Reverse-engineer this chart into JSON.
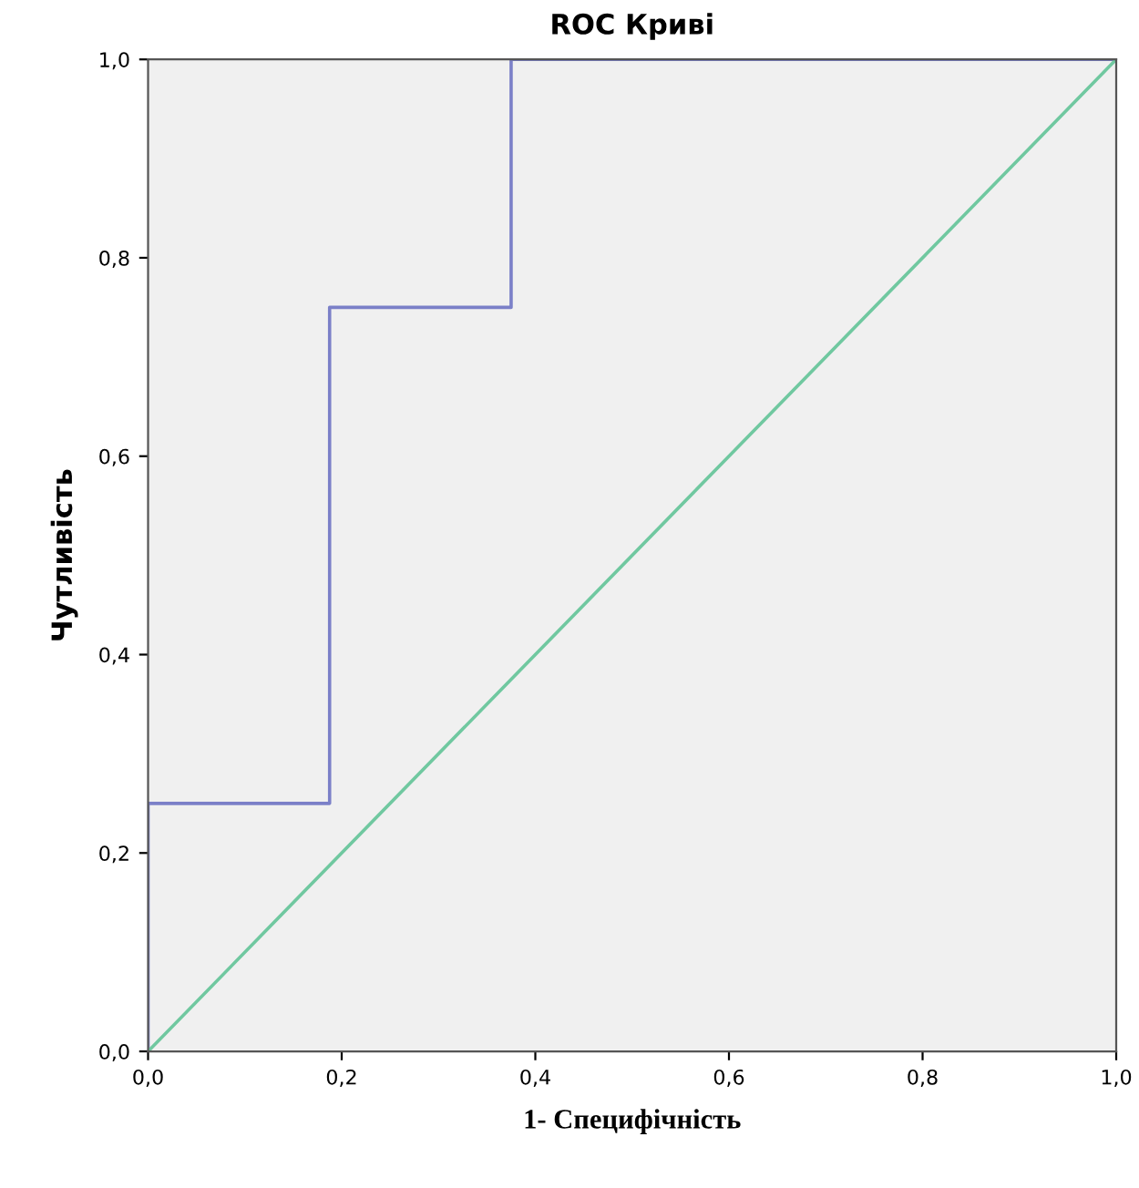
{
  "chart_data": {
    "type": "line",
    "title": "ROC Криві",
    "xlabel": "1- Специфічність",
    "ylabel": "Чутливість",
    "series": [
      {
        "type": "step",
        "color": "#7b80c8",
        "x": [
          0,
          0,
          0.1875,
          0.375,
          1.0
        ],
        "values": [
          0,
          0.25,
          0.75,
          1.0,
          1.0
        ]
      },
      {
        "color": "#70c8a0",
        "x": [
          0,
          1
        ],
        "values": [
          0,
          1
        ]
      }
    ],
    "xlim": [
      0,
      1
    ],
    "ylim": [
      0,
      1
    ],
    "xticks": [
      {
        "value": 0,
        "label": "0,0"
      },
      {
        "value": 0.2,
        "label": "0,2"
      },
      {
        "value": 0.4,
        "label": "0,4"
      },
      {
        "value": 0.6,
        "label": "0,6"
      },
      {
        "value": 0.8,
        "label": "0,8"
      },
      {
        "value": 1.0,
        "label": "1,0"
      }
    ],
    "yticks": [
      {
        "value": 0,
        "label": "0,0"
      },
      {
        "value": 0.2,
        "label": "0,2"
      },
      {
        "value": 0.4,
        "label": "0,4"
      },
      {
        "value": 0.6,
        "label": "0,6"
      },
      {
        "value": 0.8,
        "label": "0,8"
      },
      {
        "value": 1.0,
        "label": "1,0"
      }
    ],
    "grid": false,
    "legend": false
  }
}
